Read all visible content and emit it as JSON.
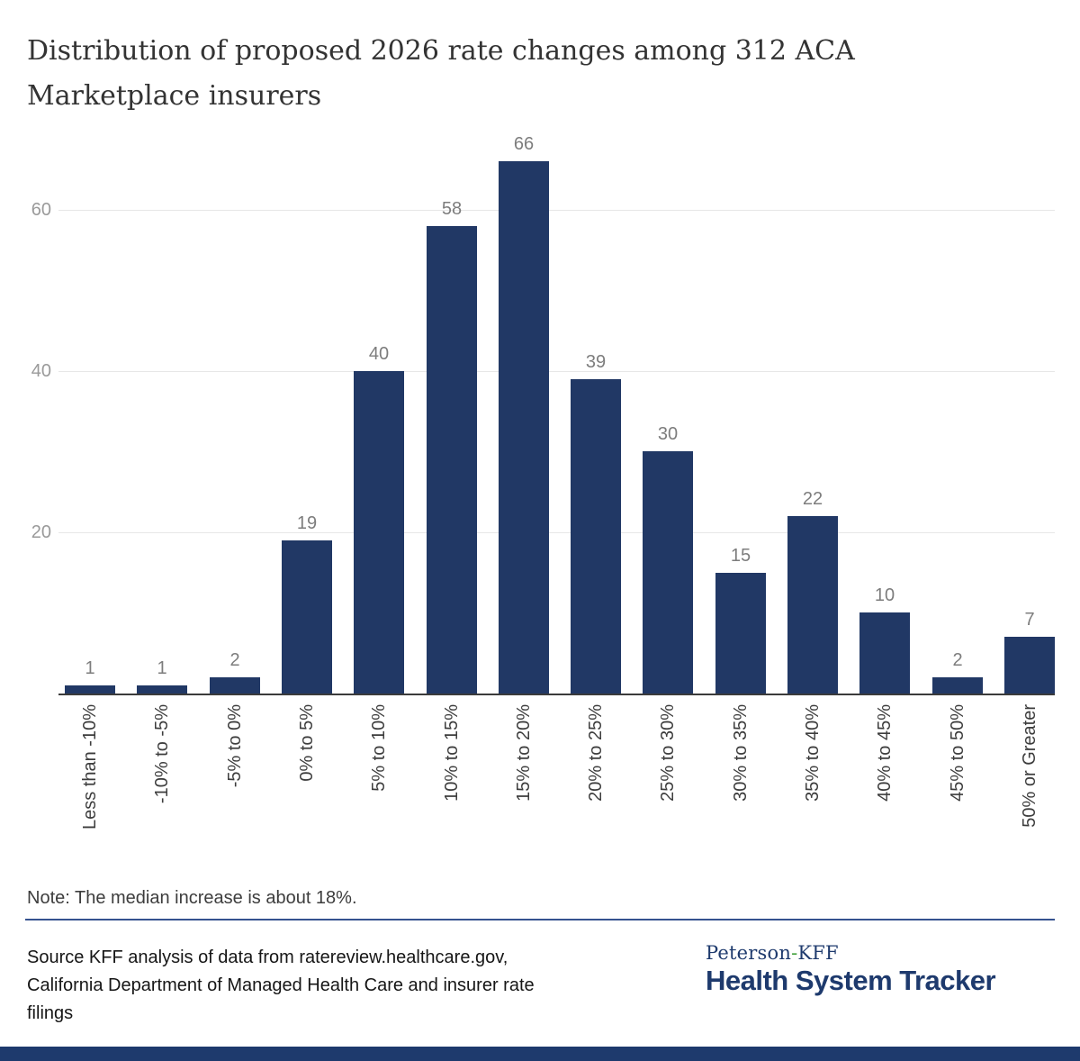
{
  "title_lines": [
    "Distribution of proposed 2026 rate changes among 312 ACA",
    "Marketplace insurers"
  ],
  "chart_data": {
    "type": "bar",
    "title": "Distribution of proposed 2026 rate changes among 312 ACA Marketplace insurers",
    "categories": [
      "Less than -10%",
      "-10% to -5%",
      "-5% to 0%",
      "0% to 5%",
      "5% to 10%",
      "10% to 15%",
      "15% to 20%",
      "20% to 25%",
      "25% to 30%",
      "30% to 35%",
      "35% to 40%",
      "40% to 45%",
      "45% to 50%",
      "50% or Greater"
    ],
    "values": [
      1,
      1,
      2,
      19,
      40,
      58,
      66,
      39,
      30,
      15,
      22,
      10,
      2,
      7
    ],
    "xlabel": "",
    "ylabel": "",
    "yticks": [
      20,
      40,
      60
    ],
    "ylim": [
      0,
      66
    ],
    "grid": true,
    "legend": "none",
    "bar_value_labels_shown": true
  },
  "note": "Note: The median increase is about 18%.",
  "source_lines": [
    "Source KFF analysis of data from ratereview.healthcare.gov,",
    "California Department of Managed Health Care and insurer rate",
    "filings"
  ],
  "logo": {
    "prefix": "Peterson",
    "hyphen": "-",
    "suffix": "KFF",
    "name": "Health System Tracker"
  },
  "colors": {
    "bar": "#213865",
    "gridline": "#e7e7e7",
    "axis_line": "#3b3b3b",
    "value_label": "#7d7d7d",
    "tick_label": "#9a9a9a",
    "category_label": "#3d3d3d",
    "divider": "#35538f",
    "logo_navy": "#1e3a6d",
    "logo_hyphen_green": "#44a13f",
    "footer_bar": "#1e3a6d"
  }
}
